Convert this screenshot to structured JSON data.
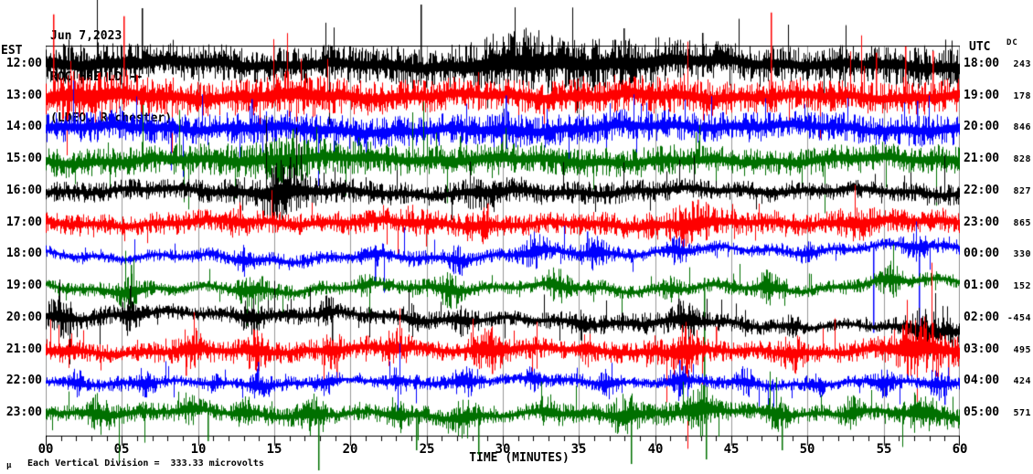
{
  "header": {
    "date": "Jun 7,2023",
    "station": "ROC HHE LD --",
    "network": "(LDEO, Rochester)"
  },
  "axes": {
    "left_header": "EST",
    "right_header": "UTC",
    "dc_header": "DC",
    "x_axis_label": "TIME (MINUTES)",
    "x_ticks": [
      "00",
      "05",
      "10",
      "15",
      "20",
      "25",
      "30",
      "35",
      "40",
      "45",
      "50",
      "55",
      "60"
    ],
    "footer_symbol": "µ",
    "footer_note": "Each Vertical Division =  333.33 microvolts"
  },
  "colors": {
    "background": "#ffffff",
    "axis": "#000000",
    "grid": "#999999",
    "black": "#000000",
    "red": "#ff0000",
    "blue": "#0000ff",
    "green": "#007000"
  },
  "chart_data": {
    "type": "line",
    "title": "ROC HHE LD -- (LDEO, Rochester) helicorder, Jun 7,2023",
    "xlabel": "TIME (MINUTES)",
    "x_range_minutes": [
      0,
      60
    ],
    "minutes_per_row": 60,
    "grid_interval_minutes": 5,
    "minor_tick_minutes": 1,
    "y_units": "microvolts",
    "vertical_division_microvolts": 333.33,
    "rows": [
      {
        "est": "12:00",
        "utc": "18:00",
        "dc": 243,
        "color": "black",
        "amp": 13,
        "env": [
          1.15,
          1.25,
          1.05,
          0.95,
          1.05,
          1.1,
          1.35,
          1.45,
          1.35,
          1.05,
          0.95,
          1.1,
          1.2
        ],
        "bursts": [
          {
            "m": 31,
            "g": 1.4,
            "w": 3
          }
        ],
        "spikes": [
          {
            "m": 6.3,
            "up": 62,
            "dn": 10
          },
          {
            "m": 24.6,
            "up": 66,
            "dn": 8
          },
          {
            "m": 37.9,
            "up": 40,
            "dn": 10
          },
          {
            "m": 43.1,
            "up": 35,
            "dn": 8
          }
        ],
        "drift": [
          [
            0,
            0
          ],
          [
            0.2,
            -3
          ],
          [
            0.45,
            1
          ],
          [
            0.75,
            -3
          ],
          [
            1,
            1
          ]
        ],
        "wamp": 2
      },
      {
        "est": "13:00",
        "utc": "19:00",
        "dc": 178,
        "color": "red",
        "amp": 12,
        "env": [
          1.35,
          1.25,
          1.1,
          1.2,
          1.1,
          1.0,
          1.0,
          1.1,
          1.2,
          1.0,
          0.95,
          1.0,
          1.1
        ],
        "bursts": [
          {
            "m": 3,
            "g": 1.3,
            "w": 2
          },
          {
            "m": 16,
            "g": 1.25,
            "w": 2
          }
        ],
        "spikes": [
          {
            "m": 0.5,
            "up": 90,
            "dn": 10
          },
          {
            "m": 5.1,
            "up": 88,
            "dn": 12
          },
          {
            "m": 47.6,
            "up": 92,
            "dn": 10
          },
          {
            "m": 54.5,
            "up": 48,
            "dn": 8
          },
          {
            "m": 56.4,
            "up": 55,
            "dn": 8
          },
          {
            "m": 58.2,
            "up": 50,
            "dn": 8
          }
        ],
        "drift": [
          [
            0,
            1
          ],
          [
            0.3,
            -2
          ],
          [
            0.6,
            1
          ],
          [
            1,
            -2
          ]
        ],
        "wamp": 2
      },
      {
        "est": "14:00",
        "utc": "20:00",
        "dc": 846,
        "color": "blue",
        "amp": 11,
        "env": [
          1.05,
          1.1,
          1.0,
          1.1,
          1.05,
          1.0,
          1.1,
          1.05,
          1.0,
          1.0,
          0.95,
          1.0,
          1.15
        ],
        "bursts": [
          {
            "m": 30,
            "g": 1.3,
            "w": 1
          }
        ],
        "spikes": [
          {
            "m": 13.5,
            "up": 32,
            "dn": 6
          },
          {
            "m": 30.2,
            "up": 36,
            "dn": 8
          },
          {
            "m": 57.2,
            "up": 30,
            "dn": 6
          },
          {
            "m": 21.0,
            "up": 6,
            "dn": 30
          }
        ],
        "drift": [
          [
            0,
            0
          ],
          [
            0.4,
            2
          ],
          [
            0.7,
            -2
          ],
          [
            1,
            2
          ]
        ],
        "wamp": 2
      },
      {
        "est": "15:00",
        "utc": "21:00",
        "dc": 828,
        "color": "green",
        "amp": 11,
        "env": [
          0.95,
          1.0,
          1.1,
          1.3,
          1.1,
          1.0,
          1.1,
          1.0,
          1.0,
          0.95,
          0.9,
          1.0,
          1.0
        ],
        "bursts": [
          {
            "m": 16,
            "g": 1.5,
            "w": 0.8
          }
        ],
        "spikes": [
          {
            "m": 16.2,
            "up": 34,
            "dn": 8
          },
          {
            "m": 27.2,
            "up": 26,
            "dn": 6
          }
        ],
        "drift": [
          [
            0,
            0
          ],
          [
            1,
            0
          ]
        ],
        "wamp": 2
      },
      {
        "est": "16:00",
        "utc": "22:00",
        "dc": 827,
        "color": "black",
        "amp": 8,
        "env": [
          0.95,
          0.9,
          1.0,
          1.6,
          1.15,
          1.0,
          1.2,
          1.1,
          1.0,
          0.9,
          0.85,
          0.9,
          1.0
        ],
        "bursts": [
          {
            "m": 15.5,
            "g": 2.0,
            "w": 1.2
          },
          {
            "m": 28.5,
            "g": 1.6,
            "w": 1.0
          }
        ],
        "spikes": [
          {
            "m": 16.0,
            "up": 38,
            "dn": 8
          },
          {
            "m": 14.8,
            "up": 26,
            "dn": 10
          }
        ],
        "drift": [
          [
            0,
            0
          ],
          [
            1,
            0
          ]
        ],
        "wamp": 2
      },
      {
        "est": "17:00",
        "utc": "23:00",
        "dc": 865,
        "color": "red",
        "amp": 8,
        "env": [
          1.0,
          0.95,
          1.1,
          1.0,
          1.1,
          1.2,
          1.0,
          1.0,
          1.3,
          1.2,
          1.0,
          1.2,
          1.1
        ],
        "bursts": [
          {
            "m": 12.5,
            "g": 1.6,
            "w": 0.6
          },
          {
            "m": 24,
            "g": 1.5,
            "w": 0.5
          },
          {
            "m": 28.5,
            "g": 1.7,
            "w": 0.8
          },
          {
            "m": 42.5,
            "g": 1.9,
            "w": 1.2
          },
          {
            "m": 53,
            "g": 1.6,
            "w": 1.0
          }
        ],
        "spikes": [
          {
            "m": 42.8,
            "up": 26,
            "dn": 10
          },
          {
            "m": 29.0,
            "up": 22,
            "dn": 8
          }
        ],
        "drift": [
          [
            0,
            0
          ],
          [
            1,
            0
          ]
        ],
        "wamp": 2
      },
      {
        "est": "18:00",
        "utc": "00:00",
        "dc": 330,
        "color": "blue",
        "amp": 5,
        "env": [
          0.85,
          0.9,
          1.0,
          1.2,
          0.9,
          1.3,
          1.0,
          1.4,
          1.0,
          0.9,
          1.0,
          0.85,
          1.2
        ],
        "bursts": [
          {
            "m": 13,
            "g": 2.2,
            "w": 0.5
          },
          {
            "m": 21.5,
            "g": 2.4,
            "w": 0.7
          },
          {
            "m": 27,
            "g": 2.0,
            "w": 0.5
          },
          {
            "m": 32,
            "g": 2.6,
            "w": 0.8
          },
          {
            "m": 36,
            "g": 2.2,
            "w": 0.6
          },
          {
            "m": 41.5,
            "g": 2.4,
            "w": 0.7
          },
          {
            "m": 50,
            "g": 2.0,
            "w": 0.5
          },
          {
            "m": 57,
            "g": 2.2,
            "w": 0.8
          }
        ],
        "spikes": [
          {
            "m": 54.3,
            "up": 8,
            "dn": 85
          },
          {
            "m": 57.3,
            "up": 8,
            "dn": 95
          },
          {
            "m": 35.5,
            "up": 26,
            "dn": 6
          },
          {
            "m": 21.6,
            "up": 8,
            "dn": 30
          }
        ],
        "drift": [
          [
            0,
            0
          ],
          [
            0.5,
            3
          ],
          [
            0.78,
            -7
          ],
          [
            1,
            -12
          ]
        ],
        "wamp": 3
      },
      {
        "est": "19:00",
        "utc": "01:00",
        "dc": 152,
        "color": "green",
        "amp": 5,
        "env": [
          0.85,
          1.3,
          0.9,
          1.3,
          0.9,
          1.2,
          1.0,
          1.3,
          0.9,
          1.2,
          0.9,
          1.3,
          1.0
        ],
        "bursts": [
          {
            "m": 5.5,
            "g": 2.4,
            "w": 0.7
          },
          {
            "m": 13.5,
            "g": 2.6,
            "w": 0.8
          },
          {
            "m": 21,
            "g": 2.2,
            "w": 0.6
          },
          {
            "m": 26.5,
            "g": 2.6,
            "w": 0.8
          },
          {
            "m": 33.5,
            "g": 2.4,
            "w": 0.7
          },
          {
            "m": 41,
            "g": 2.2,
            "w": 0.6
          },
          {
            "m": 47.5,
            "g": 2.6,
            "w": 0.8
          },
          {
            "m": 55.5,
            "g": 2.4,
            "w": 0.7
          }
        ],
        "spikes": [
          {
            "m": 43.2,
            "up": 10,
            "dn": 150
          },
          {
            "m": 5.6,
            "up": 24,
            "dn": 6
          }
        ],
        "drift": [
          [
            0,
            0
          ],
          [
            0.55,
            3
          ],
          [
            0.85,
            -2
          ],
          [
            1,
            -8
          ]
        ],
        "wamp": 3
      },
      {
        "est": "20:00",
        "utc": "02:00",
        "dc": -454,
        "color": "black",
        "amp": 6,
        "env": [
          1.3,
          1.2,
          0.9,
          1.3,
          1.0,
          1.2,
          0.9,
          1.2,
          1.4,
          1.2,
          0.7,
          0.8,
          1.6
        ],
        "bursts": [
          {
            "m": 1,
            "g": 2.2,
            "w": 0.8
          },
          {
            "m": 5.5,
            "g": 2.4,
            "w": 0.5
          },
          {
            "m": 13.5,
            "g": 2.2,
            "w": 0.7
          },
          {
            "m": 18.5,
            "g": 2.0,
            "w": 0.5
          },
          {
            "m": 24,
            "g": 1.8,
            "w": 0.5
          },
          {
            "m": 27.5,
            "g": 2.2,
            "w": 0.7
          },
          {
            "m": 35,
            "g": 1.8,
            "w": 0.5
          },
          {
            "m": 42,
            "g": 2.2,
            "w": 0.8
          },
          {
            "m": 49,
            "g": 2.0,
            "w": 0.6
          },
          {
            "m": 57.5,
            "g": 2.6,
            "w": 1.2
          }
        ],
        "spikes": [
          {
            "m": 5.5,
            "up": 36,
            "dn": 8
          },
          {
            "m": 18.8,
            "up": 8,
            "dn": 30
          },
          {
            "m": 41.5,
            "up": 22,
            "dn": 8
          }
        ],
        "drift": [
          [
            0,
            -2
          ],
          [
            0.35,
            -4
          ],
          [
            0.6,
            3
          ],
          [
            0.85,
            10
          ],
          [
            1,
            13
          ]
        ],
        "wamp": 2.5
      },
      {
        "est": "21:00",
        "utc": "03:00",
        "dc": 495,
        "color": "red",
        "amp": 7,
        "env": [
          1.2,
          1.0,
          1.3,
          1.1,
          1.2,
          1.0,
          1.3,
          1.0,
          1.3,
          1.1,
          1.0,
          1.2,
          1.6
        ],
        "bursts": [
          {
            "m": 1.5,
            "g": 1.8,
            "w": 0.6
          },
          {
            "m": 9.5,
            "g": 2.0,
            "w": 0.7
          },
          {
            "m": 13.8,
            "g": 2.2,
            "w": 0.7
          },
          {
            "m": 18.8,
            "g": 2.0,
            "w": 0.6
          },
          {
            "m": 23,
            "g": 2.2,
            "w": 0.8
          },
          {
            "m": 29,
            "g": 2.4,
            "w": 0.8
          },
          {
            "m": 35.5,
            "g": 2.0,
            "w": 0.6
          },
          {
            "m": 42,
            "g": 2.6,
            "w": 1.0
          },
          {
            "m": 49,
            "g": 2.2,
            "w": 0.8
          },
          {
            "m": 57,
            "g": 2.6,
            "w": 1.5
          }
        ],
        "spikes": [
          {
            "m": 9.2,
            "up": 8,
            "dn": 28
          },
          {
            "m": 19.1,
            "up": 8,
            "dn": 32
          },
          {
            "m": 29.3,
            "up": 8,
            "dn": 26
          },
          {
            "m": 44.0,
            "up": 26,
            "dn": 8
          },
          {
            "m": 58.2,
            "up": 30,
            "dn": 12
          },
          {
            "m": 59.2,
            "up": 10,
            "dn": 35
          }
        ],
        "drift": [
          [
            0,
            0
          ],
          [
            1,
            0
          ]
        ],
        "wamp": 2
      },
      {
        "est": "22:00",
        "utc": "04:00",
        "dc": 424,
        "color": "blue",
        "amp": 4,
        "env": [
          1.0,
          1.5,
          0.9,
          1.4,
          0.9,
          1.5,
          1.0,
          1.4,
          0.9,
          1.5,
          1.0,
          1.4,
          1.2
        ],
        "bursts": [
          {
            "m": 2,
            "g": 2.4,
            "w": 0.5
          },
          {
            "m": 6.5,
            "g": 2.6,
            "w": 0.6
          },
          {
            "m": 11,
            "g": 2.2,
            "w": 0.5
          },
          {
            "m": 14,
            "g": 2.6,
            "w": 0.6
          },
          {
            "m": 18.5,
            "g": 2.8,
            "w": 0.7
          },
          {
            "m": 23,
            "g": 2.4,
            "w": 0.5
          },
          {
            "m": 27.5,
            "g": 2.8,
            "w": 0.7
          },
          {
            "m": 32,
            "g": 2.4,
            "w": 0.5
          },
          {
            "m": 37,
            "g": 2.6,
            "w": 0.6
          },
          {
            "m": 41.5,
            "g": 3.0,
            "w": 0.7
          },
          {
            "m": 46,
            "g": 2.4,
            "w": 0.5
          },
          {
            "m": 50.5,
            "g": 2.6,
            "w": 0.6
          },
          {
            "m": 55,
            "g": 2.4,
            "w": 0.5
          },
          {
            "m": 58.5,
            "g": 2.6,
            "w": 0.6
          }
        ],
        "spikes": [
          {
            "m": 13.9,
            "up": 22,
            "dn": 6
          },
          {
            "m": 41.6,
            "up": 24,
            "dn": 6
          },
          {
            "m": 59.0,
            "up": 6,
            "dn": 25
          }
        ],
        "drift": [
          [
            0,
            0
          ],
          [
            1,
            0
          ]
        ],
        "wamp": 2
      },
      {
        "est": "23:00",
        "utc": "05:00",
        "dc": 571,
        "color": "green",
        "amp": 6,
        "env": [
          1.0,
          1.3,
          0.9,
          1.3,
          1.0,
          1.2,
          0.9,
          1.3,
          1.5,
          1.1,
          1.0,
          1.2,
          1.3
        ],
        "bursts": [
          {
            "m": 3.5,
            "g": 2.2,
            "w": 0.7
          },
          {
            "m": 9.5,
            "g": 2.4,
            "w": 0.8
          },
          {
            "m": 13,
            "g": 2.0,
            "w": 0.5
          },
          {
            "m": 17.5,
            "g": 2.4,
            "w": 0.7
          },
          {
            "m": 23,
            "g": 2.2,
            "w": 0.6
          },
          {
            "m": 27.5,
            "g": 2.6,
            "w": 0.8
          },
          {
            "m": 33,
            "g": 2.2,
            "w": 0.6
          },
          {
            "m": 38,
            "g": 2.4,
            "w": 0.7
          },
          {
            "m": 43,
            "g": 2.8,
            "w": 1.0
          },
          {
            "m": 48,
            "g": 2.4,
            "w": 0.7
          },
          {
            "m": 53,
            "g": 2.2,
            "w": 0.6
          },
          {
            "m": 57.5,
            "g": 2.6,
            "w": 0.9
          }
        ],
        "spikes": [
          {
            "m": 10.6,
            "up": 6,
            "dn": 30
          },
          {
            "m": 17.9,
            "up": 8,
            "dn": 62
          },
          {
            "m": 24.3,
            "up": 6,
            "dn": 40
          },
          {
            "m": 28.4,
            "up": 6,
            "dn": 45
          },
          {
            "m": 38.4,
            "up": 8,
            "dn": 55
          },
          {
            "m": 43.3,
            "up": 10,
            "dn": 50
          },
          {
            "m": 48.3,
            "up": 6,
            "dn": 40
          }
        ],
        "drift": [
          [
            0,
            0
          ],
          [
            1,
            0
          ]
        ],
        "wamp": 2.5
      }
    ]
  }
}
